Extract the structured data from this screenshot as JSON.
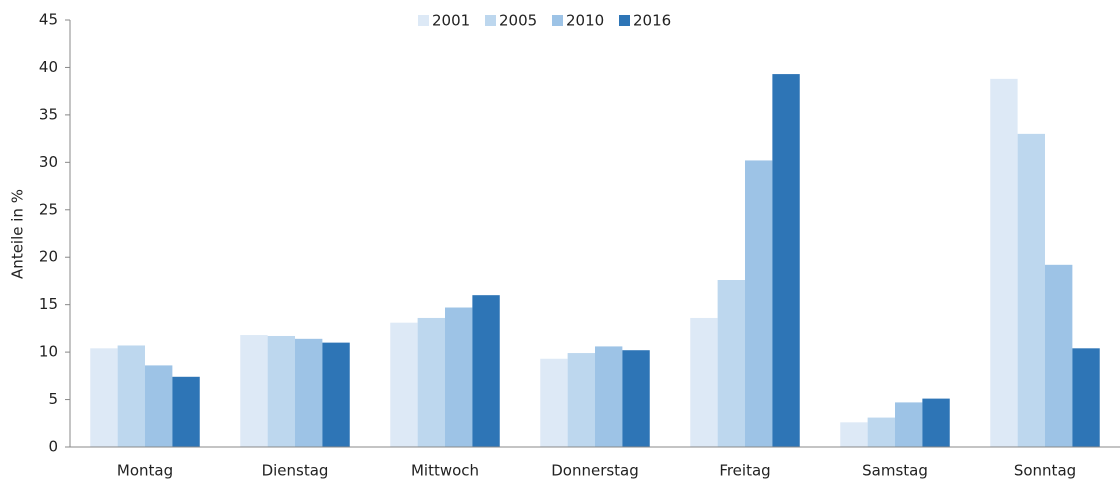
{
  "chart_data": {
    "type": "bar",
    "y_label": "Anteile in %",
    "categories": [
      "Montag",
      "Dienstag",
      "Mittwoch",
      "Donnerstag",
      "Freitag",
      "Samstag",
      "Sonntag"
    ],
    "series": [
      {
        "name": "2001",
        "color": "#dde9f6",
        "values": [
          10.4,
          11.8,
          13.1,
          9.3,
          13.6,
          2.6,
          38.8
        ]
      },
      {
        "name": "2005",
        "color": "#bdd7ee",
        "values": [
          10.7,
          11.7,
          13.6,
          9.9,
          17.6,
          3.1,
          33.0
        ]
      },
      {
        "name": "2010",
        "color": "#9dc3e6",
        "values": [
          8.6,
          11.4,
          14.7,
          10.6,
          30.2,
          4.7,
          19.2
        ]
      },
      {
        "name": "2016",
        "color": "#2e75b6",
        "values": [
          7.4,
          11.0,
          16.0,
          10.2,
          39.3,
          5.1,
          10.4
        ]
      }
    ],
    "ylim": [
      0,
      45
    ],
    "yticks": [
      0,
      5,
      10,
      15,
      20,
      25,
      30,
      35,
      40,
      45
    ],
    "legend": "top",
    "grid": false
  }
}
